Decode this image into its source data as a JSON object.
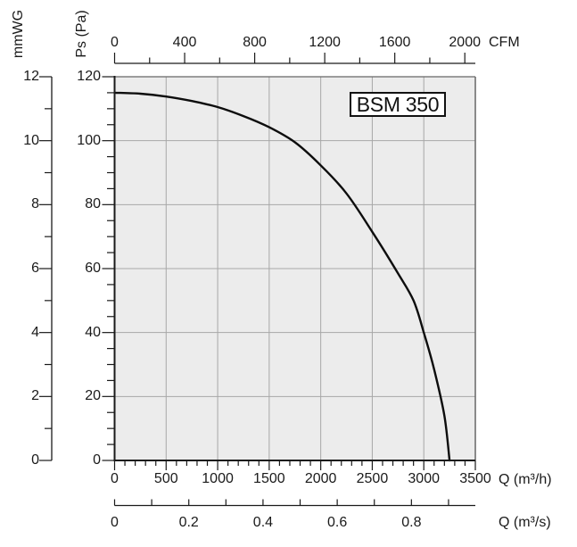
{
  "chart_data": {
    "type": "line",
    "title": "BSM 350",
    "grid": true,
    "legend": "none",
    "series": [
      {
        "name": "BSM 350 fan curve",
        "x_unit": "m³/h",
        "y_unit": "Pa",
        "points": [
          [
            0,
            115
          ],
          [
            250,
            114.7
          ],
          [
            500,
            113.8
          ],
          [
            750,
            112.4
          ],
          [
            1000,
            110.5
          ],
          [
            1250,
            107.7
          ],
          [
            1500,
            104.2
          ],
          [
            1750,
            99.5
          ],
          [
            2000,
            92.3
          ],
          [
            2250,
            83.5
          ],
          [
            2500,
            71.5
          ],
          [
            2750,
            58.5
          ],
          [
            2900,
            50
          ],
          [
            3000,
            40
          ],
          [
            3100,
            28.5
          ],
          [
            3200,
            14
          ],
          [
            3250,
            0
          ]
        ]
      }
    ],
    "axes": {
      "x_bottom": {
        "label": "Q (m³/h)",
        "min": 0,
        "max": 3500,
        "majors": [
          0,
          500,
          1000,
          1500,
          2000,
          2500,
          3000,
          3500
        ],
        "major_labels": [
          "0",
          "500",
          "1000",
          "1500",
          "2000",
          "2500",
          "3000",
          "3500"
        ],
        "minor_step": 100,
        "to_m3h": 1
      },
      "x_bottom_outer": {
        "label": "Q (m³/s)",
        "min": 0,
        "max": 0.97,
        "majors": [
          0,
          0.2,
          0.4,
          0.6,
          0.8
        ],
        "major_labels": [
          "0",
          "0.2",
          "0.4",
          "0.6",
          "0.8"
        ],
        "minor_step": 0.1,
        "minor_max": 0.9,
        "to_m3h": 3600
      },
      "x_top": {
        "label": "CFM",
        "min": 0,
        "max": 2000,
        "majors": [
          0,
          400,
          800,
          1200,
          1600,
          2000
        ],
        "major_labels": [
          "0",
          "400",
          "800",
          "1200",
          "1600",
          "2000"
        ],
        "minor_step": 200,
        "to_m3h": 1.699
      },
      "y_inner": {
        "label": "Ps (Pa)",
        "min": 0,
        "max": 120,
        "majors": [
          0,
          20,
          40,
          60,
          80,
          100,
          120
        ],
        "major_labels": [
          "0",
          "20",
          "40",
          "60",
          "80",
          "100",
          "120"
        ],
        "minor_step": 5
      },
      "y_outer": {
        "label": "mmWG",
        "min": 0,
        "max": 12,
        "majors": [
          0,
          2,
          4,
          6,
          8,
          10,
          12
        ],
        "major_labels": [
          "0",
          "2",
          "4",
          "6",
          "8",
          "10",
          "12"
        ],
        "minor_step": 1
      }
    },
    "colors": {
      "curve": "#0d0d0d",
      "grid": "#a7a7a7",
      "plot_bg": "#ececec",
      "axis": "#1a1a1a",
      "frame": "#666666",
      "text": "#1a1a1a",
      "title_box_bg": "#ffffff",
      "title_box_border": "#111111"
    }
  }
}
